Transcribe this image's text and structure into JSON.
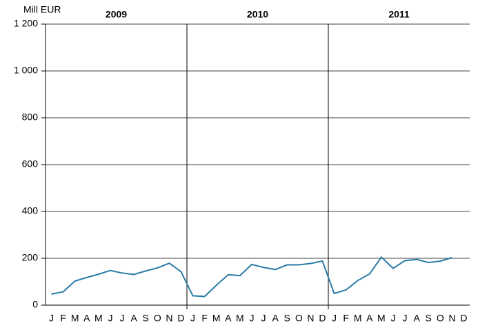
{
  "chart_data": {
    "type": "line",
    "y_label": "Mill EUR",
    "groups": [
      "2009",
      "2010",
      "2011"
    ],
    "categories": [
      "J",
      "F",
      "M",
      "A",
      "M",
      "J",
      "J",
      "A",
      "S",
      "O",
      "N",
      "D",
      "J",
      "F",
      "M",
      "A",
      "M",
      "J",
      "J",
      "A",
      "S",
      "O",
      "N",
      "D",
      "J",
      "F",
      "M",
      "A",
      "M",
      "J",
      "J",
      "A",
      "S",
      "O",
      "N",
      "D"
    ],
    "series": [
      {
        "color": "#2a7ba6",
        "values": [
          47,
          57,
          103,
          118,
          132,
          148,
          137,
          131,
          146,
          159,
          179,
          143,
          40,
          37,
          85,
          130,
          126,
          174,
          161,
          152,
          172,
          172,
          178,
          188,
          50,
          65,
          105,
          133,
          205,
          157,
          190,
          195,
          182,
          188,
          203,
          null
        ]
      }
    ],
    "ylim": [
      0,
      1200
    ],
    "yticks": [
      0,
      200,
      400,
      600,
      800,
      {
        "value": 1000,
        "label": "1 000"
      },
      {
        "value": 1200,
        "label": "1 200"
      }
    ],
    "grid": true
  }
}
